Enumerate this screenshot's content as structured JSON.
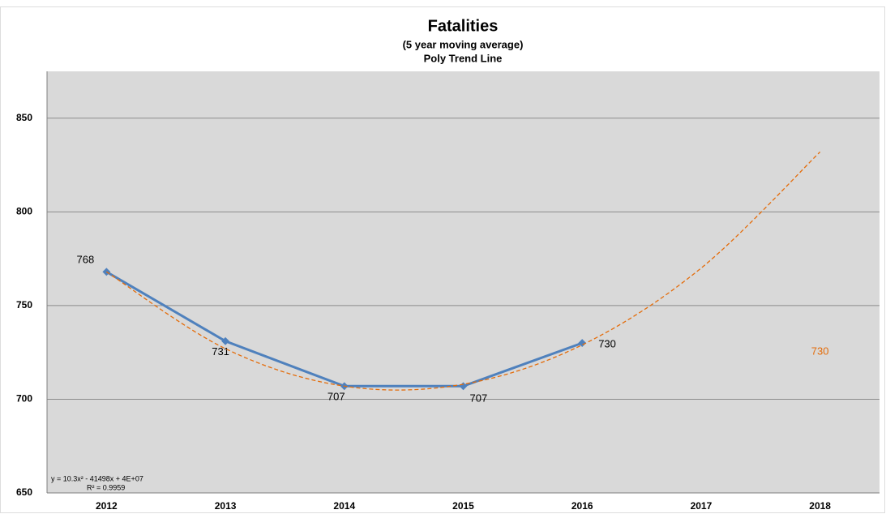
{
  "chart_data": {
    "type": "line",
    "title": "Fatalities",
    "subtitle": [
      "(5 year moving average)",
      "Poly Trend Line"
    ],
    "categories": [
      "2012",
      "2013",
      "2014",
      "2015",
      "2016",
      "2017",
      "2018"
    ],
    "series": [
      {
        "name": "Fatalities",
        "color": "#4f81bd",
        "values": [
          768,
          731,
          707,
          707,
          730,
          null,
          null
        ]
      },
      {
        "name": "Poly Trend Line",
        "color": "#e46c0a",
        "dashed": true,
        "values": [
          768,
          727,
          707,
          708,
          729,
          770,
          832
        ]
      }
    ],
    "annotations": [
      "730",
      "y = 10.3x² - 41498x + 4E+07",
      "R² = 0.9959"
    ],
    "ylim": [
      650,
      875
    ],
    "yticks": [
      650,
      700,
      750,
      800,
      850
    ],
    "grid": true
  }
}
